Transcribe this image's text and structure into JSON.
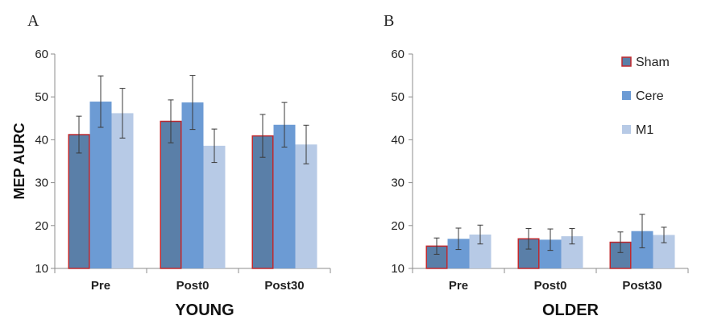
{
  "chart_data": [
    {
      "type": "bar",
      "panel_label": "A",
      "xlabel": "YOUNG",
      "ylabel": "MEP AURC",
      "ylim": [
        10,
        60
      ],
      "yticks": [
        "10",
        "20",
        "30",
        "40",
        "50",
        "60"
      ],
      "categories": [
        "Pre",
        "Post0",
        "Post30"
      ],
      "series": [
        {
          "values": [
            41.2,
            44.3,
            40.9
          ],
          "errors": [
            4.3,
            5.0,
            5.0
          ]
        },
        {
          "values": [
            48.9,
            48.7,
            43.5
          ],
          "errors": [
            6.0,
            6.3,
            5.2
          ]
        },
        {
          "values": [
            46.2,
            38.6,
            38.9
          ],
          "errors": [
            5.8,
            3.9,
            4.5
          ]
        }
      ]
    },
    {
      "type": "bar",
      "panel_label": "B",
      "xlabel": "OLDER",
      "ylabel": "",
      "ylim": [
        10,
        60
      ],
      "yticks": [
        "10",
        "20",
        "30",
        "40",
        "50",
        "60"
      ],
      "categories": [
        "Pre",
        "Post0",
        "Post30"
      ],
      "series": [
        {
          "name": "Sham",
          "values": [
            15.2,
            16.9,
            16.1
          ],
          "errors": [
            1.9,
            2.4,
            2.4
          ]
        },
        {
          "name": "Cere",
          "values": [
            16.9,
            16.7,
            18.7
          ],
          "errors": [
            2.5,
            2.5,
            3.9
          ]
        },
        {
          "name": "M1",
          "values": [
            17.9,
            17.5,
            17.8
          ],
          "errors": [
            2.2,
            1.8,
            1.8
          ]
        }
      ],
      "legend_position": "top-right"
    }
  ],
  "colors": {
    "Sham_fill": "#5a7fa8",
    "Sham_edge": "#c0282d",
    "Cere_fill": "#6c9bd4",
    "M1_fill": "#b7cae6",
    "axis": "#8c8c8c",
    "errorbar": "#3a3a3a"
  }
}
